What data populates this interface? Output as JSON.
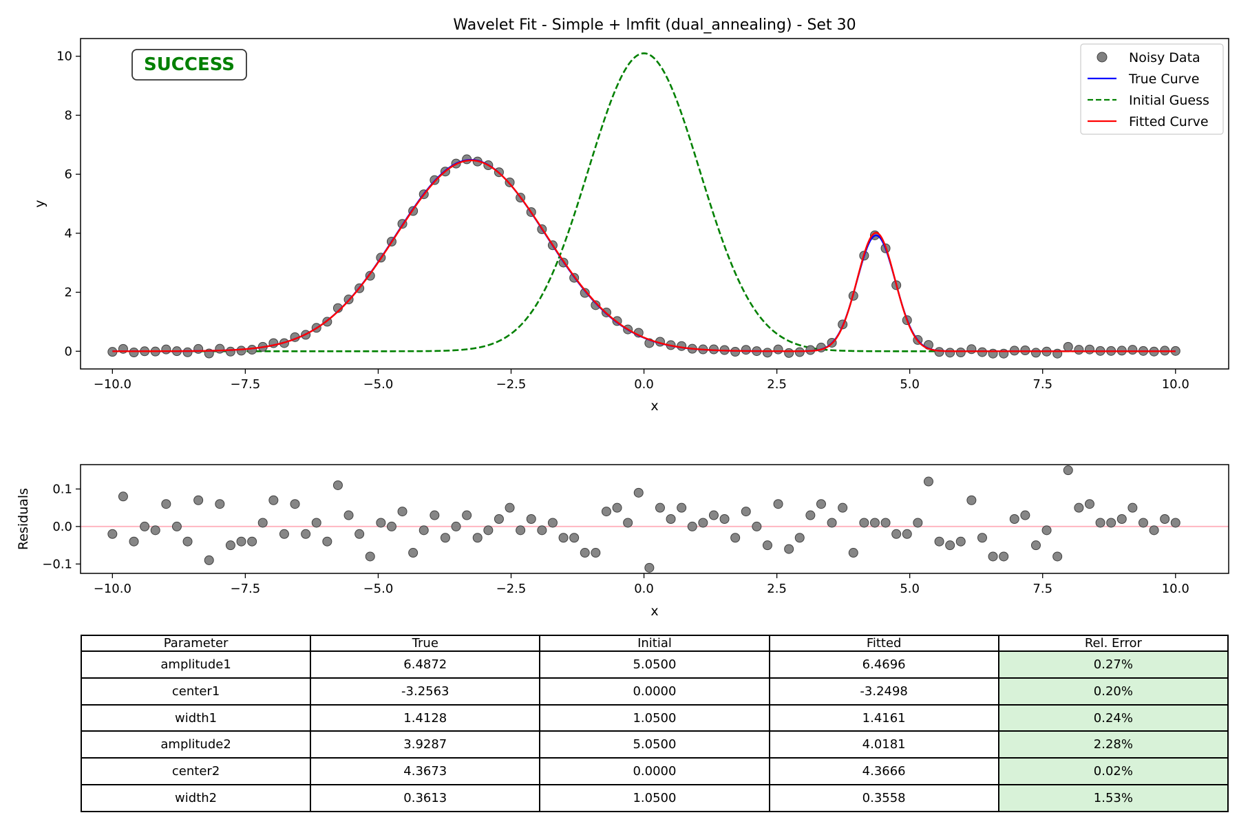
{
  "chart_data": [
    {
      "type": "line",
      "title": "Wavelet Fit - Simple + lmfit (dual_annealing) - Set 30",
      "xlabel": "x",
      "ylabel": "y",
      "xlim": [
        -10.6,
        11.0
      ],
      "ylim": [
        -0.6,
        10.6
      ],
      "x_ticks": [
        -10.0,
        -7.5,
        -5.0,
        -2.5,
        0.0,
        2.5,
        5.0,
        7.5,
        10.0
      ],
      "x_tick_labels": [
        "−10.0",
        "−7.5",
        "−5.0",
        "−2.5",
        "0.0",
        "2.5",
        "5.0",
        "7.5",
        "10.0"
      ],
      "y_ticks": [
        0,
        2,
        4,
        6,
        8,
        10
      ],
      "y_tick_labels": [
        "0",
        "2",
        "4",
        "6",
        "8",
        "10"
      ],
      "grid": false,
      "legend_position": "top-right",
      "badge": "SUCCESS",
      "colors": {
        "data": "#555555",
        "true": "#0000ff",
        "initial": "#008000",
        "fitted": "#ff0000",
        "badge": "#008000"
      },
      "series": [
        {
          "name": "Noisy Data",
          "style": "markers",
          "x_range": [
            -10,
            10
          ],
          "n_points": 100,
          "residuals": [
            -0.02,
            0.08,
            -0.04,
            0.0,
            -0.01,
            0.06,
            0.0,
            -0.04,
            0.07,
            -0.09,
            0.06,
            -0.05,
            -0.04,
            -0.04,
            0.01,
            0.07,
            -0.02,
            0.06,
            -0.02,
            0.01,
            -0.04,
            0.11,
            0.03,
            -0.02,
            -0.08,
            0.01,
            0.0,
            0.04,
            -0.07,
            -0.01,
            0.03,
            -0.03,
            0.0,
            0.03,
            -0.03,
            -0.01,
            0.02,
            0.05,
            -0.01,
            0.02,
            -0.01,
            0.01,
            -0.03,
            -0.03,
            -0.07,
            -0.07,
            0.04,
            0.05,
            0.01,
            0.09,
            -0.11,
            0.05,
            0.02,
            0.05,
            0.0,
            0.01,
            0.03,
            0.02,
            -0.03,
            0.04,
            0.0,
            -0.05,
            0.06,
            -0.06,
            -0.03,
            0.03,
            0.06,
            0.01,
            0.05,
            -0.07,
            0.01,
            0.01,
            0.01,
            -0.02,
            -0.02,
            0.01,
            0.12,
            -0.04,
            -0.05,
            -0.04,
            0.07,
            -0.03,
            -0.08,
            -0.08,
            0.02,
            0.03,
            -0.05,
            -0.01,
            -0.08,
            0.15,
            0.05,
            0.06,
            0.01,
            0.01,
            0.02,
            0.05,
            0.01,
            -0.01,
            0.02,
            0.01
          ]
        },
        {
          "name": "True Curve",
          "style": "solid",
          "params": {
            "amplitude1": 6.4872,
            "center1": -3.2563,
            "width1": 1.4128,
            "amplitude2": 3.9287,
            "center2": 4.3673,
            "width2": 0.3613
          }
        },
        {
          "name": "Initial Guess",
          "style": "dashed",
          "params": {
            "amplitude1": 5.05,
            "center1": 0.0,
            "width1": 1.05,
            "amplitude2": 5.05,
            "center2": 0.0,
            "width2": 1.05
          }
        },
        {
          "name": "Fitted Curve",
          "style": "solid",
          "params": {
            "amplitude1": 6.4696,
            "center1": -3.2498,
            "width1": 1.4161,
            "amplitude2": 4.0181,
            "center2": 4.3666,
            "width2": 0.3558
          }
        }
      ]
    },
    {
      "type": "scatter",
      "title": "",
      "xlabel": "x",
      "ylabel": "Residuals",
      "xlim": [
        -10.6,
        11.0
      ],
      "ylim": [
        -0.125,
        0.165
      ],
      "x_ticks": [
        -10.0,
        -7.5,
        -5.0,
        -2.5,
        0.0,
        2.5,
        5.0,
        7.5,
        10.0
      ],
      "x_tick_labels": [
        "−10.0",
        "−7.5",
        "−5.0",
        "−2.5",
        "0.0",
        "2.5",
        "5.0",
        "7.5",
        "10.0"
      ],
      "y_ticks": [
        -0.1,
        0.0,
        0.1
      ],
      "y_tick_labels": [
        "−0.1",
        "0.0",
        "0.1"
      ],
      "zero_line_color": "#ffb6c1",
      "grid": false
    },
    {
      "type": "table",
      "columns": [
        "Parameter",
        "True",
        "Initial",
        "Fitted",
        "Rel. Error"
      ],
      "rows": [
        [
          "amplitude1",
          "6.4872",
          "5.0500",
          "6.4696",
          "0.27%"
        ],
        [
          "center1",
          "-3.2563",
          "0.0000",
          "-3.2498",
          "0.20%"
        ],
        [
          "width1",
          "1.4128",
          "1.0500",
          "1.4161",
          "0.24%"
        ],
        [
          "amplitude2",
          "3.9287",
          "5.0500",
          "4.0181",
          "2.28%"
        ],
        [
          "center2",
          "4.3673",
          "0.0000",
          "4.3666",
          "0.02%"
        ],
        [
          "width2",
          "0.3613",
          "1.0500",
          "0.3558",
          "1.53%"
        ]
      ],
      "highlight_color": "#d8f2d8"
    }
  ]
}
